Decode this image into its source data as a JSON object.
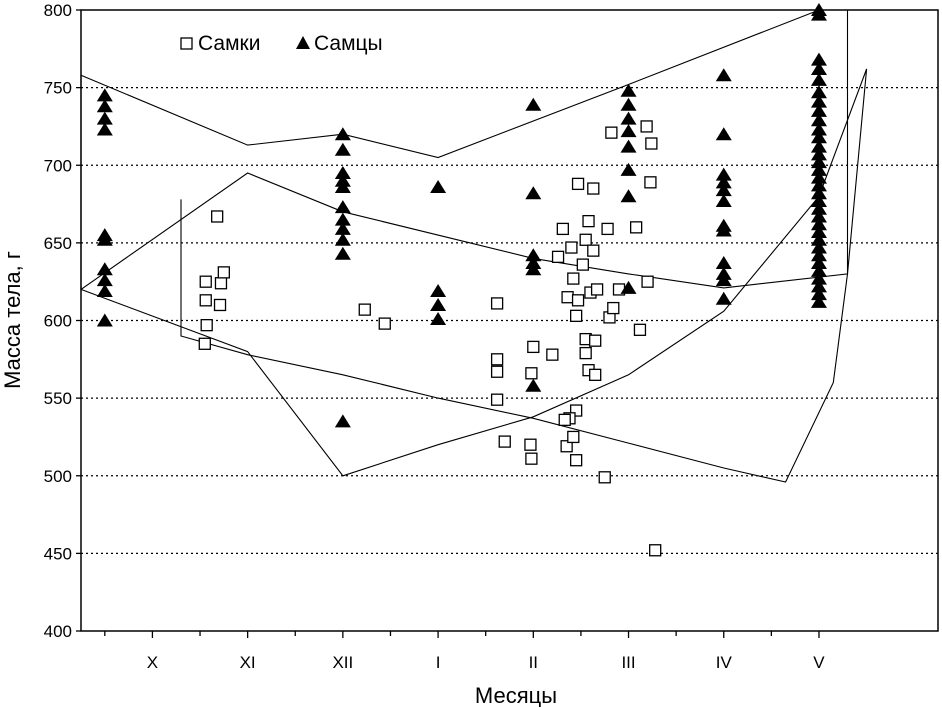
{
  "chart_data": {
    "type": "scatter",
    "xlabel": "Месяцы",
    "ylabel": "Масса тела, г",
    "categories": [
      "X",
      "XI",
      "XII",
      "I",
      "II",
      "III",
      "IV",
      "V"
    ],
    "xlim": [
      -0.75,
      8.25
    ],
    "ylim": [
      400,
      800
    ],
    "yticks": [
      400,
      450,
      500,
      550,
      600,
      650,
      700,
      750,
      800
    ],
    "grid": "horizontal-dotted",
    "legend": {
      "position": "top-left",
      "entries": [
        {
          "label": "Самки",
          "marker": "open-square"
        },
        {
          "label": "Самцы",
          "marker": "filled-triangle"
        }
      ]
    },
    "series": [
      {
        "name": "Самки",
        "marker": "open-square",
        "points": [
          [
            0.68,
            667
          ],
          [
            0.56,
            625
          ],
          [
            0.72,
            624
          ],
          [
            0.75,
            631
          ],
          [
            0.56,
            613
          ],
          [
            0.71,
            610
          ],
          [
            0.57,
            597
          ],
          [
            0.55,
            585
          ],
          [
            2.23,
            607
          ],
          [
            2.44,
            598
          ],
          [
            3.62,
            611
          ],
          [
            3.62,
            575
          ],
          [
            3.62,
            567
          ],
          [
            3.62,
            549
          ],
          [
            3.7,
            522
          ],
          [
            4.0,
            583
          ],
          [
            3.98,
            566
          ],
          [
            3.97,
            520
          ],
          [
            3.98,
            511
          ],
          [
            4.2,
            578
          ],
          [
            4.26,
            641
          ],
          [
            4.31,
            659
          ],
          [
            4.36,
            615
          ],
          [
            4.4,
            647
          ],
          [
            4.42,
            627
          ],
          [
            4.45,
            603
          ],
          [
            4.47,
            613
          ],
          [
            4.52,
            636
          ],
          [
            4.55,
            652
          ],
          [
            4.47,
            688
          ],
          [
            4.58,
            664
          ],
          [
            4.6,
            618
          ],
          [
            4.63,
            685
          ],
          [
            4.63,
            645
          ],
          [
            4.67,
            620
          ],
          [
            4.55,
            588
          ],
          [
            4.55,
            579
          ],
          [
            4.58,
            568
          ],
          [
            4.65,
            565
          ],
          [
            4.65,
            587
          ],
          [
            4.45,
            542
          ],
          [
            4.38,
            537
          ],
          [
            4.35,
            519
          ],
          [
            4.42,
            525
          ],
          [
            4.45,
            510
          ],
          [
            4.33,
            536
          ],
          [
            4.82,
            721
          ],
          [
            4.78,
            659
          ],
          [
            4.8,
            602
          ],
          [
            4.84,
            608
          ],
          [
            4.9,
            620
          ],
          [
            4.75,
            499
          ],
          [
            5.08,
            660
          ],
          [
            5.12,
            594
          ],
          [
            5.19,
            725
          ],
          [
            5.2,
            625
          ],
          [
            5.24,
            714
          ],
          [
            5.23,
            689
          ],
          [
            5.28,
            452
          ]
        ]
      },
      {
        "name": "Самцы",
        "marker": "filled-triangle",
        "points": [
          [
            -0.5,
            745
          ],
          [
            -0.5,
            738
          ],
          [
            -0.5,
            730
          ],
          [
            -0.5,
            723
          ],
          [
            -0.5,
            655
          ],
          [
            -0.5,
            652
          ],
          [
            -0.5,
            633
          ],
          [
            -0.5,
            626
          ],
          [
            -0.5,
            619
          ],
          [
            -0.5,
            600
          ],
          [
            2.0,
            720
          ],
          [
            2.0,
            710
          ],
          [
            2.0,
            695
          ],
          [
            2.0,
            690
          ],
          [
            2.0,
            686
          ],
          [
            2.0,
            673
          ],
          [
            2.0,
            665
          ],
          [
            2.0,
            659
          ],
          [
            2.0,
            652
          ],
          [
            2.0,
            643
          ],
          [
            2.0,
            535
          ],
          [
            3.0,
            686
          ],
          [
            3.0,
            619
          ],
          [
            3.0,
            610
          ],
          [
            3.0,
            601
          ],
          [
            4.0,
            739
          ],
          [
            4.0,
            682
          ],
          [
            4.0,
            642
          ],
          [
            4.0,
            637
          ],
          [
            4.0,
            633
          ],
          [
            4.0,
            558
          ],
          [
            5.0,
            748
          ],
          [
            5.0,
            739
          ],
          [
            5.0,
            730
          ],
          [
            5.0,
            722
          ],
          [
            5.0,
            712
          ],
          [
            5.0,
            697
          ],
          [
            5.0,
            680
          ],
          [
            5.0,
            621
          ],
          [
            6.0,
            758
          ],
          [
            6.0,
            720
          ],
          [
            6.0,
            694
          ],
          [
            6.0,
            689
          ],
          [
            6.0,
            684
          ],
          [
            6.0,
            677
          ],
          [
            6.0,
            661
          ],
          [
            6.0,
            658
          ],
          [
            6.0,
            637
          ],
          [
            6.0,
            630
          ],
          [
            6.0,
            626
          ],
          [
            6.0,
            614
          ],
          [
            7.0,
            800
          ],
          [
            7.0,
            797
          ],
          [
            7.0,
            768
          ],
          [
            7.0,
            762
          ],
          [
            7.0,
            755
          ],
          [
            7.0,
            747
          ],
          [
            7.0,
            741
          ],
          [
            7.0,
            735
          ],
          [
            7.0,
            729
          ],
          [
            7.0,
            723
          ],
          [
            7.0,
            718
          ],
          [
            7.0,
            712
          ],
          [
            7.0,
            707
          ],
          [
            7.0,
            702
          ],
          [
            7.0,
            697
          ],
          [
            7.0,
            692
          ],
          [
            7.0,
            687
          ],
          [
            7.0,
            682
          ],
          [
            7.0,
            677
          ],
          [
            7.0,
            672
          ],
          [
            7.0,
            667
          ],
          [
            7.0,
            662
          ],
          [
            7.0,
            657
          ],
          [
            7.0,
            652
          ],
          [
            7.0,
            647
          ],
          [
            7.0,
            642
          ],
          [
            7.0,
            637
          ],
          [
            7.0,
            632
          ],
          [
            7.0,
            627
          ],
          [
            7.0,
            622
          ],
          [
            7.0,
            617
          ],
          [
            7.0,
            612
          ]
        ]
      }
    ],
    "outlines": [
      {
        "name": "Самцы",
        "points": [
          [
            -0.75,
            758
          ],
          [
            1.0,
            713
          ],
          [
            2.0,
            720
          ],
          [
            3.0,
            705
          ],
          [
            5.0,
            752
          ],
          [
            7.0,
            800
          ],
          [
            7.3,
            800
          ],
          [
            7.3,
            630
          ],
          [
            6.0,
            621
          ],
          [
            5.0,
            630
          ],
          [
            4.0,
            640
          ],
          [
            2.0,
            670
          ],
          [
            1.0,
            695
          ],
          [
            -0.75,
            620
          ],
          [
            -0.75,
            758
          ]
        ]
      },
      {
        "name": "Самки",
        "points": [
          [
            0.3,
            678
          ],
          [
            0.3,
            590
          ],
          [
            1.0,
            578
          ],
          [
            2.0,
            565
          ],
          [
            3.0,
            550
          ],
          [
            4.0,
            537
          ],
          [
            5.0,
            521
          ],
          [
            6.0,
            505
          ],
          [
            6.65,
            496
          ],
          [
            7.15,
            560
          ],
          [
            7.3,
            630
          ],
          [
            7.5,
            762
          ],
          [
            7.0,
            680
          ],
          [
            6.0,
            606
          ],
          [
            5.0,
            565
          ],
          [
            4.0,
            538
          ],
          [
            3.0,
            520
          ],
          [
            2.0,
            500
          ],
          [
            1.0,
            580
          ],
          [
            -0.75,
            620
          ],
          [
            -0.75,
            622
          ]
        ]
      }
    ]
  }
}
